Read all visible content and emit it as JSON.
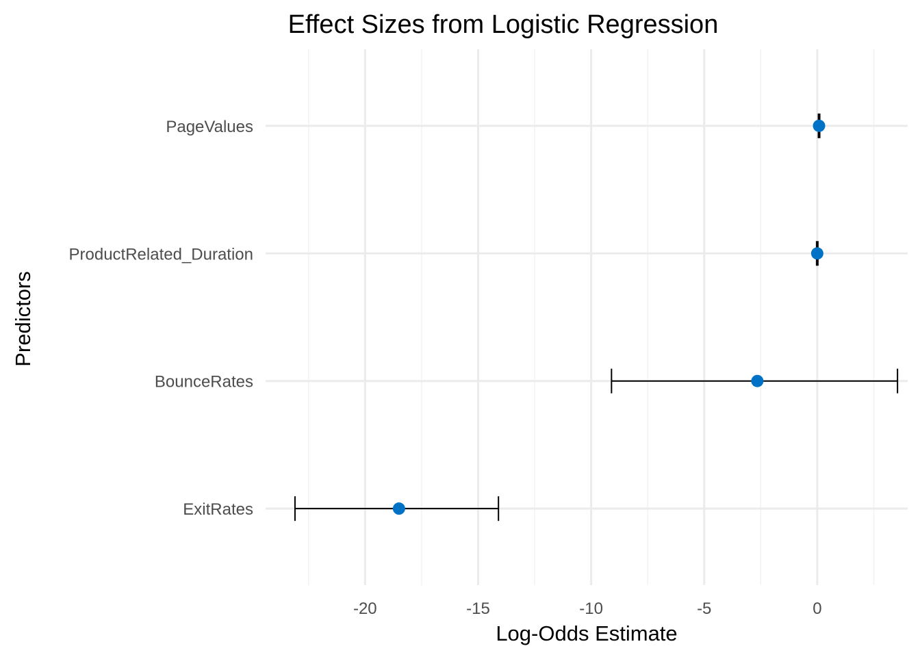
{
  "chart_data": {
    "type": "scatter",
    "title": "Effect Sizes from Logistic Regression",
    "xlabel": "Log-Odds Estimate",
    "ylabel": "Predictors",
    "xlim": [
      -24.4,
      4.0
    ],
    "x_ticks": [
      -20,
      -15,
      -10,
      -5,
      0
    ],
    "x_tick_labels": [
      "-20",
      "-15",
      "-10",
      "-5",
      "0"
    ],
    "categories": [
      "ExitRates",
      "BounceRates",
      "ProductRelated_Duration",
      "PageValues"
    ],
    "estimates": [
      -18.5,
      -2.65,
      0.0,
      0.08
    ],
    "ci_low": [
      -23.1,
      -9.1,
      -0.03,
      0.05
    ],
    "ci_high": [
      -14.1,
      3.55,
      0.03,
      0.11
    ],
    "grid": true,
    "legend": "none",
    "point_color": "#0072c6",
    "errorbar_color": "#000000"
  }
}
